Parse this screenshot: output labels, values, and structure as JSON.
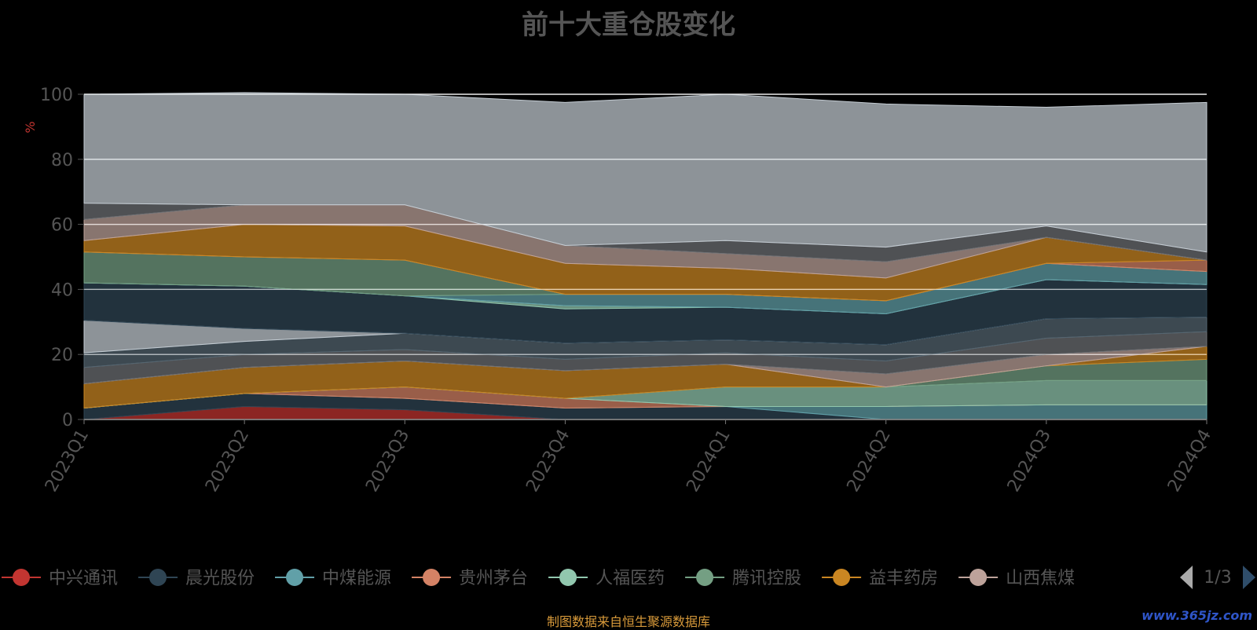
{
  "title": "前十大重仓股变化",
  "footer": "制图数据来自恒生聚源数据库",
  "watermark": "www.365jz.com",
  "legend_page": "1/3",
  "chart_data": {
    "type": "area",
    "stacked": true,
    "ylabel": "%",
    "ylim": [
      0,
      100
    ],
    "yticks": [
      0,
      20,
      40,
      60,
      80,
      100
    ],
    "grid": true,
    "legend_placement": "bottom",
    "categories": [
      "2023Q1",
      "2023Q2",
      "2023Q3",
      "2023Q4",
      "2024Q1",
      "2024Q2",
      "2024Q3",
      "2024Q4"
    ],
    "series": [
      {
        "name": "中兴通讯",
        "color": "#c23531",
        "values": [
          0,
          4,
          3,
          0,
          0,
          0,
          0,
          0
        ]
      },
      {
        "name": "晨光股份",
        "color": "#2f4554",
        "values": [
          3.5,
          4,
          3.5,
          3.5,
          4,
          0,
          0,
          0
        ]
      },
      {
        "name": "中煤能源",
        "color": "#61a0a8",
        "values": [
          0,
          0,
          0,
          0,
          0,
          4,
          4.5,
          4.5
        ]
      },
      {
        "name": "贵州茅台",
        "color": "#d48265",
        "values": [
          0,
          0,
          3.5,
          3,
          0,
          0,
          0,
          0
        ]
      },
      {
        "name": "人福医药",
        "color": "#91c7ae",
        "values": [
          0,
          0,
          0,
          0,
          6,
          6,
          7.5,
          7.5
        ]
      },
      {
        "name": "腾讯控股",
        "color": "#749f83",
        "values": [
          0,
          0,
          0,
          0,
          0,
          0,
          4.5,
          6.5
        ]
      },
      {
        "name": "益丰药房",
        "color": "#ca8622",
        "values": [
          7.5,
          8,
          8,
          8.5,
          7,
          0,
          0,
          4
        ]
      },
      {
        "name": "山西焦煤",
        "color": "#bda29a",
        "values": [
          0,
          0,
          0,
          0,
          0,
          4,
          3.5,
          0
        ]
      },
      {
        "color": "#6e7074",
        "values": [
          5,
          4,
          3.5,
          3.5,
          3.5,
          4,
          5,
          4.5
        ]
      },
      {
        "color": "#546570",
        "values": [
          4.5,
          4,
          5,
          5,
          4,
          5,
          6,
          4.5
        ]
      },
      {
        "color": "#c4ccd3",
        "values": [
          10,
          4,
          0,
          0,
          0,
          0,
          0,
          0
        ]
      },
      {
        "color": "#2f4554",
        "values": [
          11.5,
          13,
          11.5,
          10.5,
          10,
          9.5,
          12,
          10
        ]
      },
      {
        "color": "#91c7ae",
        "values": [
          0,
          0,
          0,
          1,
          0,
          0,
          0,
          0
        ]
      },
      {
        "color": "#61a0a8",
        "values": [
          0,
          0,
          0,
          3.5,
          4,
          4,
          5,
          4
        ]
      },
      {
        "color": "#749f83",
        "values": [
          9.5,
          9,
          11,
          0,
          0,
          0,
          0,
          0
        ]
      },
      {
        "color": "#d48265",
        "values": [
          0,
          0,
          0,
          0,
          0,
          0,
          0,
          3.5
        ]
      },
      {
        "color": "#ca8622",
        "values": [
          3.5,
          10,
          10.5,
          9.5,
          8,
          7,
          8,
          0
        ]
      },
      {
        "color": "#bda29a",
        "values": [
          6.5,
          6,
          6.5,
          5.5,
          4.5,
          5,
          0,
          0
        ]
      },
      {
        "color": "#6e7074",
        "values": [
          5,
          0,
          0,
          0,
          4,
          4.5,
          3.5,
          2.5
        ]
      },
      {
        "color": "#c4ccd3",
        "values": [
          33.5,
          34.5,
          34,
          44,
          45,
          44,
          36.5,
          46
        ]
      }
    ]
  }
}
